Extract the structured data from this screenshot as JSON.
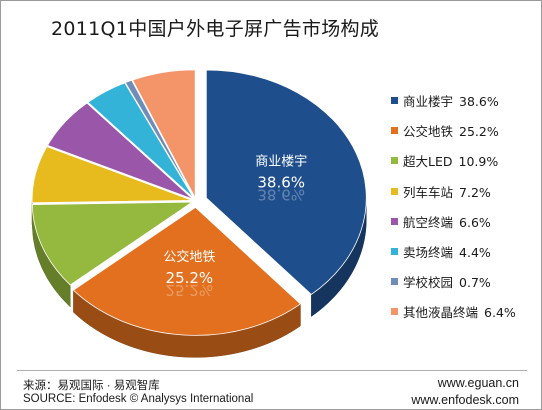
{
  "chart_data": {
    "type": "pie",
    "title": "2011Q1中国户外电子屏广告市场构成",
    "series": [
      {
        "name": "商业楼宇",
        "value": 38.6,
        "value_label": "38.6%",
        "color": "#1f4e8c"
      },
      {
        "name": "公交地铁",
        "value": 25.2,
        "value_label": "25.2%",
        "color": "#e2701f"
      },
      {
        "name": "超大LED",
        "value": 10.9,
        "value_label": "10.9%",
        "color": "#95b93e"
      },
      {
        "name": "列车车站",
        "value": 7.2,
        "value_label": "7.2%",
        "color": "#e7bb1e"
      },
      {
        "name": "航空终端",
        "value": 6.6,
        "value_label": "6.6%",
        "color": "#9a56a8"
      },
      {
        "name": "卖场终端",
        "value": 4.4,
        "value_label": "4.4%",
        "color": "#34b3d9"
      },
      {
        "name": "学校校园",
        "value": 0.7,
        "value_label": "0.7%",
        "color": "#6f8db8"
      },
      {
        "name": "其他液晶终端",
        "value": 6.4,
        "value_label": "6.4%",
        "color": "#f39569"
      }
    ],
    "data_labels": [
      {
        "name": "商业楼宇",
        "value": "38.6%"
      },
      {
        "name": "公交地铁",
        "value": "25.2%"
      }
    ],
    "legend_position": "right",
    "style": "3d-exploded"
  },
  "footer": {
    "source_cn": "来源：易观国际 · 易观智库",
    "source_en": "SOURCE: Enfodesk © Analysys International",
    "url1": "www.eguan.cn",
    "url2": "www.enfodesk.com"
  }
}
